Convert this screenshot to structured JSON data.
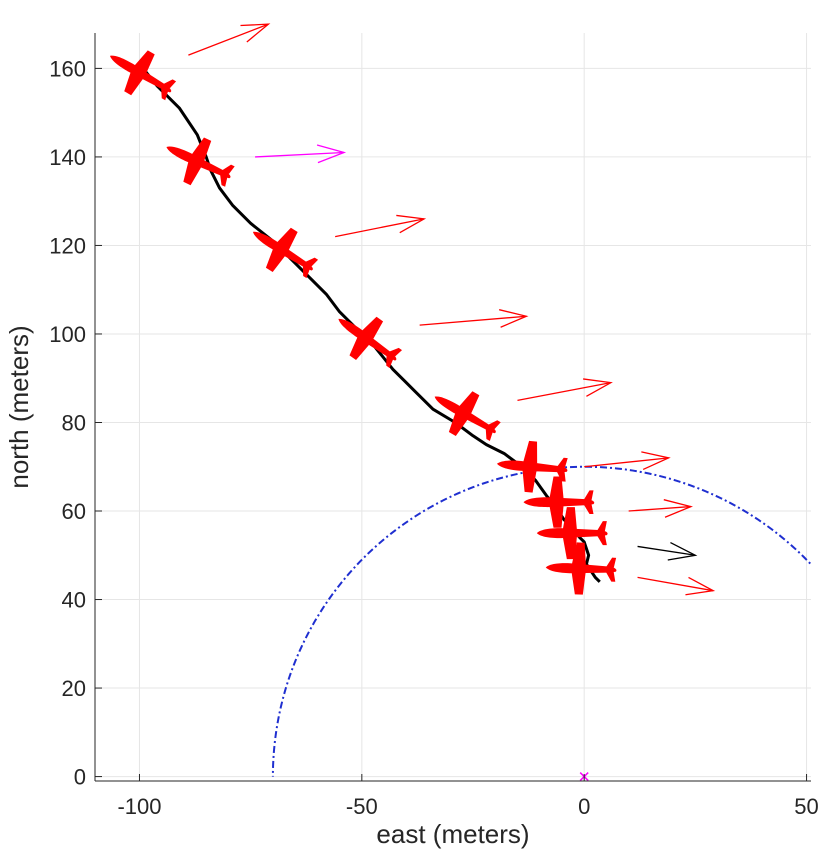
{
  "chart_data": {
    "type": "line",
    "title": "",
    "xlabel": "east (meters)",
    "ylabel": "north (meters)",
    "xlim": [
      -110,
      51
    ],
    "ylim": [
      -1,
      168
    ],
    "grid": true,
    "x_ticks": [
      -100,
      -50,
      0,
      50
    ],
    "y_ticks": [
      0,
      20,
      40,
      60,
      80,
      100,
      120,
      140,
      160
    ],
    "x_tick_labels": [
      "-100",
      "-50",
      "0",
      "50"
    ],
    "y_tick_labels": [
      "0",
      "20",
      "40",
      "60",
      "80",
      "100",
      "120",
      "140",
      "160"
    ],
    "series": [
      {
        "color": "#000000",
        "style": "solid",
        "x": [
          -100,
          -96,
          -91,
          -87,
          -85,
          -84,
          -82,
          -79,
          -75,
          -70,
          -66,
          -62,
          -58,
          -55,
          -51,
          -47,
          -43,
          -38,
          -34,
          -29,
          -25,
          -22,
          -18,
          -14,
          -11,
          -8.5,
          -6.5,
          -4.5,
          -2.5,
          -1,
          0,
          1,
          0.5,
          1.5,
          2.5,
          3.5
        ],
        "y": [
          161,
          156,
          151,
          145,
          140,
          137,
          133,
          129,
          125,
          121,
          117,
          113,
          109,
          105,
          101,
          97,
          92,
          87,
          83,
          80,
          77,
          75,
          73,
          70,
          67,
          63.5,
          61,
          58,
          56,
          54,
          53,
          50,
          48,
          46.5,
          45,
          44
        ]
      },
      {
        "color": "#1f2fd0",
        "style": "dash-dot",
        "arc": {
          "center": [
            0,
            0
          ],
          "radius": 70,
          "from_deg": 0,
          "to_deg": 180
        }
      },
      {
        "color": "#ff00ff",
        "style": "marker-x",
        "x": [
          0
        ],
        "y": [
          0
        ]
      }
    ],
    "aircraft": [
      {
        "x": -100,
        "y": 159,
        "heading_deg": 60,
        "roll_deg": 25
      },
      {
        "x": -87,
        "y": 139,
        "heading_deg": 65,
        "roll_deg": 20
      },
      {
        "x": -68,
        "y": 119,
        "heading_deg": 58,
        "roll_deg": 25
      },
      {
        "x": -49,
        "y": 99,
        "heading_deg": 55,
        "roll_deg": 25
      },
      {
        "x": -27,
        "y": 82,
        "heading_deg": 60,
        "roll_deg": 25
      },
      {
        "x": -12,
        "y": 70,
        "heading_deg": 85,
        "roll_deg": 10
      },
      {
        "x": -6,
        "y": 62,
        "heading_deg": 90,
        "roll_deg": 10
      },
      {
        "x": -3,
        "y": 55,
        "heading_deg": 90,
        "roll_deg": 0
      },
      {
        "x": -1,
        "y": 47,
        "heading_deg": 88,
        "roll_deg": 0
      }
    ],
    "wind_arrows": [
      {
        "x0": -89,
        "y0": 163,
        "x1": -71,
        "y1": 170,
        "color": "#ff0000"
      },
      {
        "x0": -74,
        "y0": 140,
        "x1": -54,
        "y1": 141,
        "color": "#ff00ff"
      },
      {
        "x0": -56,
        "y0": 122,
        "x1": -36,
        "y1": 126,
        "color": "#ff0000"
      },
      {
        "x0": -37,
        "y0": 102,
        "x1": -13,
        "y1": 104,
        "color": "#ff0000"
      },
      {
        "x0": -15,
        "y0": 85,
        "x1": 6,
        "y1": 89,
        "color": "#ff0000"
      },
      {
        "x0": 0,
        "y0": 70,
        "x1": 19,
        "y1": 72,
        "color": "#ff0000"
      },
      {
        "x0": 10,
        "y0": 60,
        "x1": 24,
        "y1": 61,
        "color": "#ff0000"
      },
      {
        "x0": 12,
        "y0": 52,
        "x1": 25,
        "y1": 50,
        "color": "#000000"
      },
      {
        "x0": 12,
        "y0": 45,
        "x1": 29,
        "y1": 42,
        "color": "#ff0000"
      }
    ]
  }
}
